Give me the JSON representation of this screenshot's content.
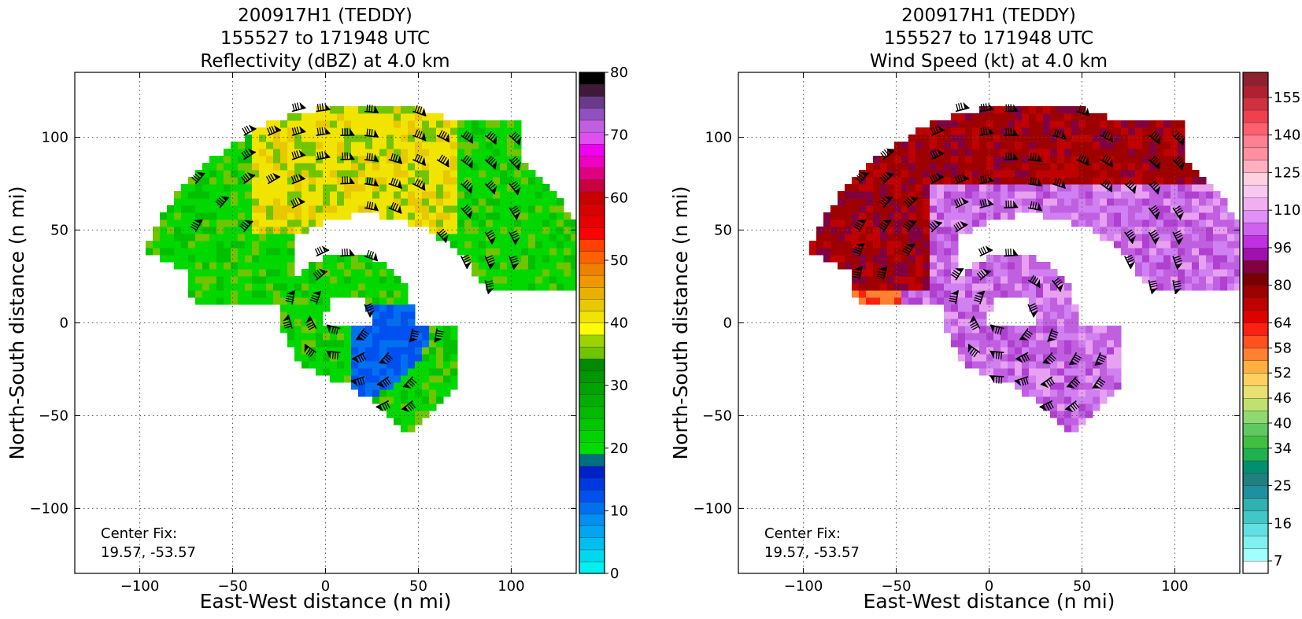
{
  "colors": {
    "reflectivity_scale": [
      "#00f0f0",
      "#00d8ee",
      "#00bff0",
      "#00a6f0",
      "#0090f0",
      "#0070f0",
      "#0050f0",
      "#0038e0",
      "#0020c8",
      "#007080",
      "#00dc00",
      "#00d200",
      "#00c600",
      "#00ba00",
      "#00ae00",
      "#00a200",
      "#009600",
      "#008a00",
      "#70c400",
      "#9cd400",
      "#ffff00",
      "#f0e400",
      "#e8c800",
      "#e8b000",
      "#f09800",
      "#f08000",
      "#ff6000",
      "#ff4000",
      "#ff0000",
      "#e80000",
      "#d80000",
      "#c80000",
      "#c80040",
      "#e00080",
      "#f000c0",
      "#f000f0",
      "#e050f0",
      "#c060e0",
      "#9050c0",
      "#6a3a8a",
      "#401838",
      "#000000"
    ],
    "wind_scale": [
      "#ffffff",
      "#a0ffff",
      "#80f0f0",
      "#60e0e0",
      "#40c8c8",
      "#30b0b0",
      "#2090a0",
      "#208080",
      "#009070",
      "#20b050",
      "#40c040",
      "#60c860",
      "#90d870",
      "#c0e070",
      "#e8e070",
      "#ffd060",
      "#ffb040",
      "#ff8030",
      "#ff5020",
      "#ff2010",
      "#e00000",
      "#c00000",
      "#9e0000",
      "#7a0000",
      "#800040",
      "#a010b0",
      "#c030e0",
      "#d060f0",
      "#e090f8",
      "#f0b0f0",
      "#f8c8f0",
      "#ffd0e0",
      "#ffb0c0",
      "#ff90a0",
      "#ff8090",
      "#ff6070",
      "#f04050",
      "#d03040",
      "#b02030",
      "#902030"
    ],
    "data_left": [
      "#00d800",
      "#00c000",
      "#70c400",
      "#f0e400",
      "#e8c800",
      "#0050f0",
      "#0070f0"
    ],
    "data_right": [
      "#c060e0",
      "#d080f0",
      "#b040d0",
      "#e8a0f0",
      "#9e0000",
      "#c00000",
      "#800040",
      "#ff2010",
      "#ff8030"
    ]
  },
  "chart_data": [
    {
      "type": "heatmap",
      "title_lines": [
        "200917H1 (TEDDY)",
        "155527 to 171948 UTC",
        "Reflectivity (dBZ) at 4.0 km"
      ],
      "xlabel": "East-West distance (n mi)",
      "ylabel": "North-South distance (n mi)",
      "xlim": [
        -135,
        135
      ],
      "ylim": [
        -135,
        135
      ],
      "xticks": [
        -100,
        -50,
        0,
        50,
        100
      ],
      "yticks": [
        -100,
        -50,
        0,
        50,
        100
      ],
      "grid": true,
      "annotation": [
        "Center Fix:",
        "19.57, -53.57"
      ],
      "colorbar": {
        "min": 0,
        "max": 80,
        "bins": 42,
        "ticks": [
          0,
          10,
          20,
          30,
          40,
          50,
          60,
          70,
          80
        ]
      }
    },
    {
      "type": "heatmap",
      "title_lines": [
        "200917H1 (TEDDY)",
        "155527 to 171948 UTC",
        "Wind Speed (kt) at 4.0 km"
      ],
      "xlabel": "East-West distance (n mi)",
      "ylabel": "North-South distance (n mi)",
      "xlim": [
        -135,
        135
      ],
      "ylim": [
        -135,
        135
      ],
      "xticks": [
        -100,
        -50,
        0,
        50,
        100
      ],
      "yticks": [
        -100,
        -50,
        0,
        50,
        100
      ],
      "grid": true,
      "annotation": [
        "Center Fix:",
        "19.57, -53.57"
      ],
      "colorbar": {
        "bins": 40,
        "ticks": [
          7,
          16,
          25,
          34,
          40,
          46,
          52,
          58,
          64,
          80,
          96,
          110,
          125,
          140,
          155
        ]
      }
    }
  ]
}
